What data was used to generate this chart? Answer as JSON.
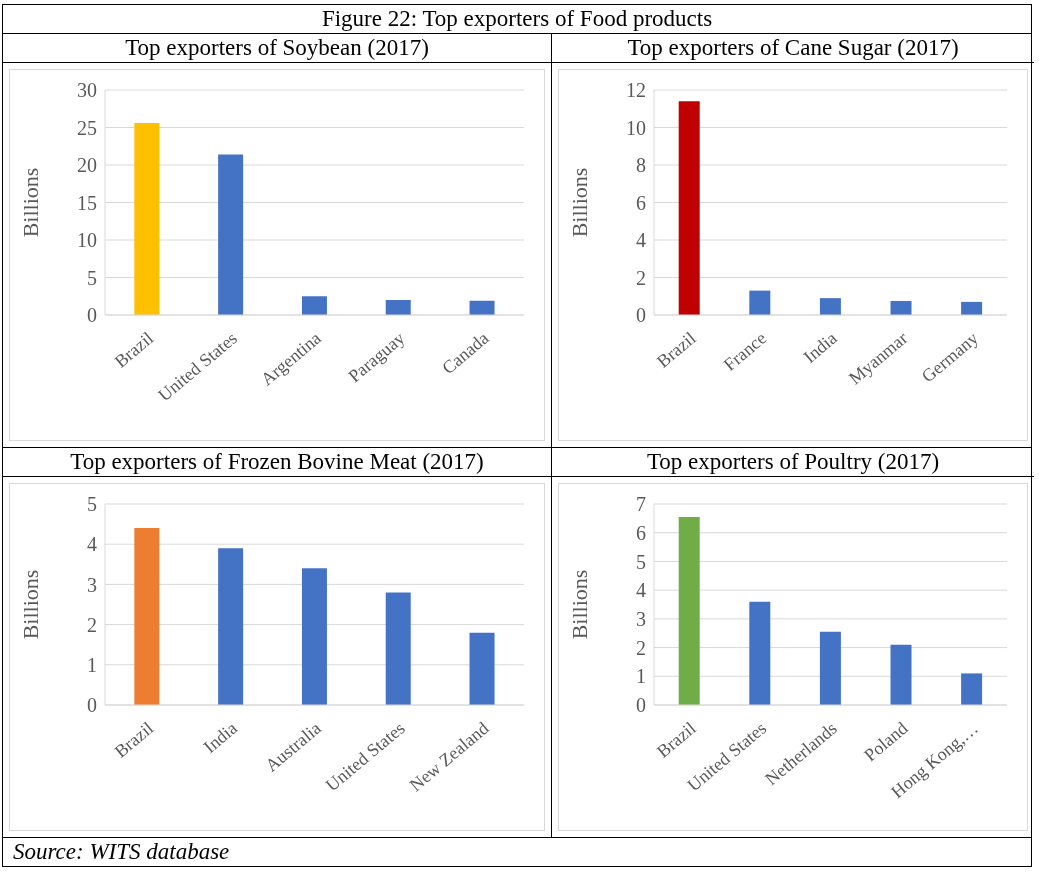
{
  "chart_data": [
    {
      "type": "bar",
      "title": "Top exporters of Soybean (2017)",
      "ylabel": "Billions",
      "categories": [
        "Brazil",
        "United States",
        "Argentina",
        "Paraguay",
        "Canada"
      ],
      "values": [
        25.6,
        21.4,
        2.5,
        2.0,
        1.9
      ],
      "colors": [
        "#ffc000",
        "#4472c4",
        "#4472c4",
        "#4472c4",
        "#4472c4"
      ],
      "ylim": [
        0,
        30
      ],
      "yticks": [
        0,
        5,
        10,
        15,
        20,
        25,
        30
      ],
      "grid": "y",
      "annotations": [
        "Figure 22: Top exporters of Food products"
      ]
    },
    {
      "type": "bar",
      "title": "Top exporters of Cane Sugar (2017)",
      "ylabel": "Billions",
      "categories": [
        "Brazil",
        "France",
        "India",
        "Myanmar",
        "Germany"
      ],
      "values": [
        11.4,
        1.3,
        0.9,
        0.75,
        0.7
      ],
      "colors": [
        "#c00000",
        "#4472c4",
        "#4472c4",
        "#4472c4",
        "#4472c4"
      ],
      "ylim": [
        0,
        12
      ],
      "yticks": [
        0,
        2,
        4,
        6,
        8,
        10,
        12
      ],
      "grid": "y"
    },
    {
      "type": "bar",
      "title": "Top exporters of Frozen Bovine Meat (2017)",
      "ylabel": "Billions",
      "categories": [
        "Brazil",
        "India",
        "Australia",
        "United States",
        "New Zealand"
      ],
      "values": [
        4.4,
        3.9,
        3.4,
        2.8,
        1.8
      ],
      "colors": [
        "#ed7d31",
        "#4472c4",
        "#4472c4",
        "#4472c4",
        "#4472c4"
      ],
      "ylim": [
        0,
        5
      ],
      "yticks": [
        0,
        1,
        2,
        3,
        4,
        5
      ],
      "grid": "y",
      "annotations": [
        "Source: WITS database"
      ]
    },
    {
      "type": "bar",
      "title": "Top exporters of Poultry (2017)",
      "ylabel": "Billions",
      "categories": [
        "Brazil",
        "United States",
        "Netherlands",
        "Poland",
        "Hong Kong,…"
      ],
      "values": [
        6.55,
        3.6,
        2.55,
        2.1,
        1.1
      ],
      "colors": [
        "#70ad47",
        "#4472c4",
        "#4472c4",
        "#4472c4",
        "#4472c4"
      ],
      "ylim": [
        0,
        7
      ],
      "yticks": [
        0,
        1,
        2,
        3,
        4,
        5,
        6,
        7
      ],
      "grid": "y"
    }
  ]
}
